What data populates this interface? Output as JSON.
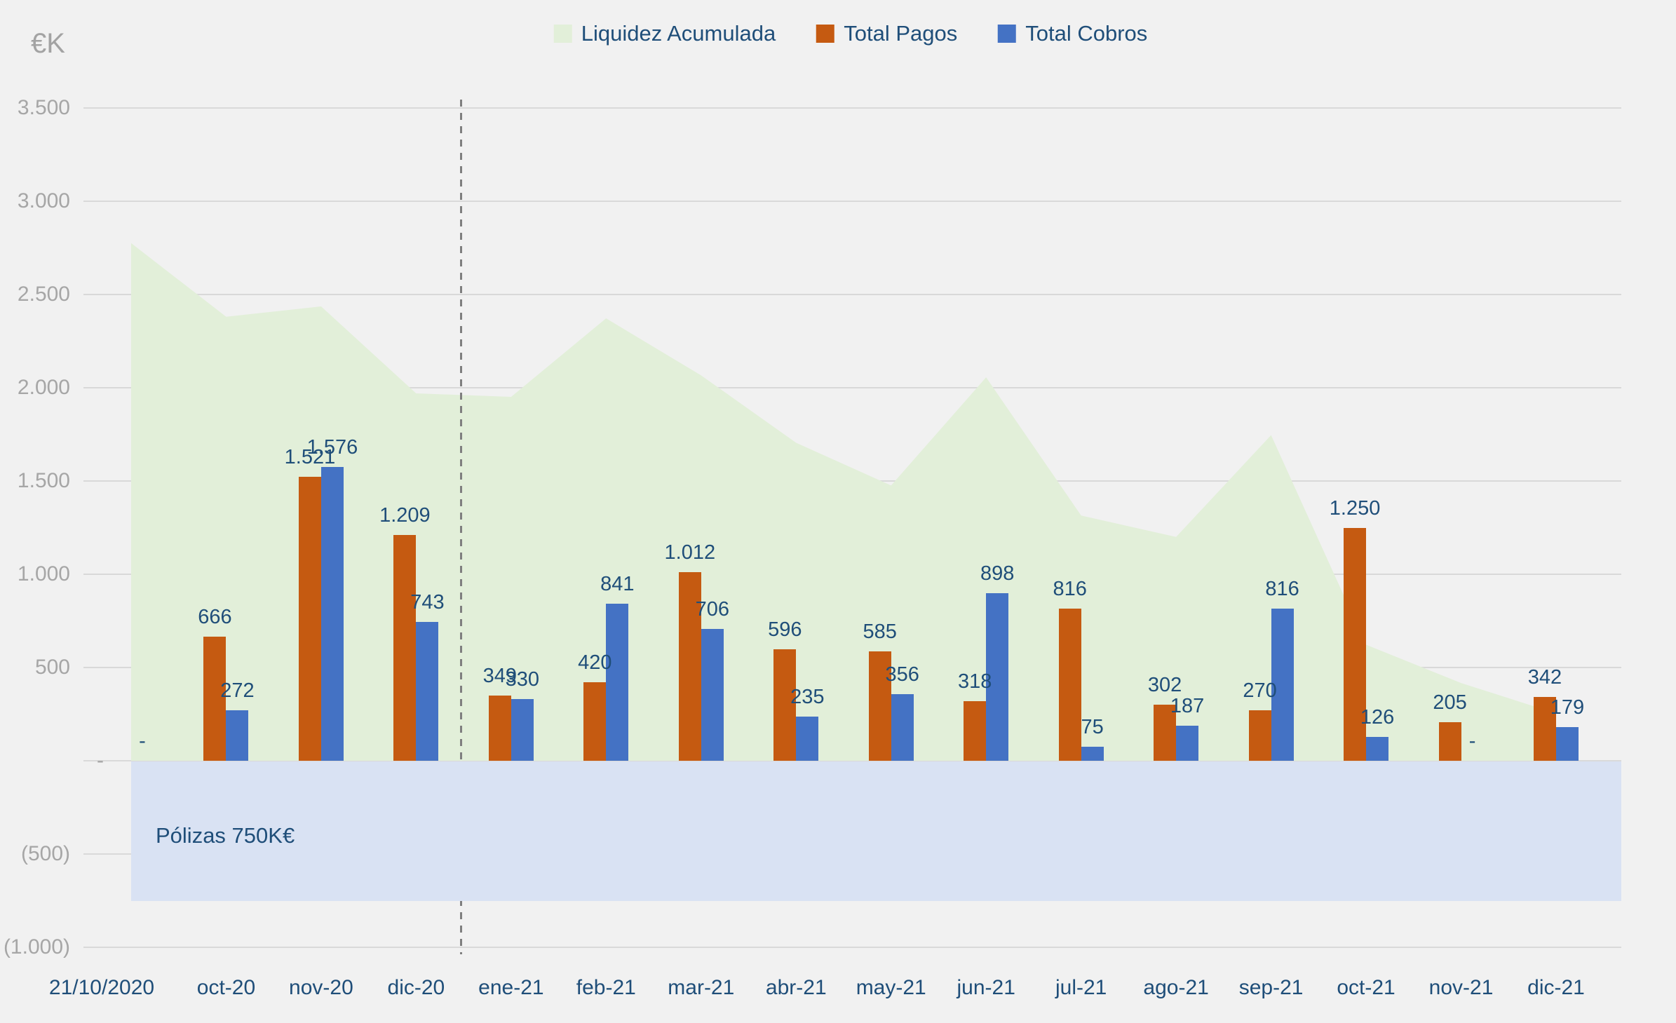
{
  "chart": {
    "unit_label": "€K",
    "legend": [
      {
        "name": "Liquidez Acumulada",
        "color": "#E2EFD9"
      },
      {
        "name": "Total Pagos",
        "color": "#C55A11"
      },
      {
        "name": "Total Cobros",
        "color": "#4472C4"
      }
    ],
    "annotation": "Pólizas 750K€",
    "colors": {
      "background": "#F1F1F1",
      "gridline": "#D9D9D9",
      "axis_text_gray": "#A6A6A6",
      "label_navy": "#1F4E79",
      "area_green": "#E2EFD9",
      "pagos_orange": "#C55A11",
      "cobros_blue": "#4472C4",
      "band_blue": "#D9E2F3",
      "divider_gray": "#7F7F7F"
    },
    "chart_data": {
      "type": "bar",
      "subtype": "combo-area-and-clustered-bars",
      "categories": [
        "21/10/2020",
        "oct-20",
        "nov-20",
        "dic-20",
        "ene-21",
        "feb-21",
        "mar-21",
        "abr-21",
        "may-21",
        "jun-21",
        "jul-21",
        "ago-21",
        "sep-21",
        "oct-21",
        "nov-21",
        "dic-21"
      ],
      "series": [
        {
          "name": "Liquidez Acumulada",
          "type": "area",
          "color": "#E2EFD9",
          "values": [
            2775,
            2381,
            2436,
            1970,
            1951,
            2372,
            2066,
            1705,
            1476,
            2056,
            1315,
            1200,
            1746,
            622,
            417,
            254
          ]
        },
        {
          "name": "Total Pagos",
          "type": "bar",
          "color": "#C55A11",
          "values": [
            null,
            666,
            1521,
            1209,
            349,
            420,
            1012,
            596,
            585,
            318,
            816,
            302,
            270,
            1250,
            205,
            342
          ],
          "labels": [
            "",
            "666",
            "1.521",
            "1.209",
            "349",
            "420",
            "1.012",
            "596",
            "585",
            "318",
            "816",
            "302",
            "270",
            "1.250",
            "205",
            "342"
          ]
        },
        {
          "name": "Total Cobros",
          "type": "bar",
          "color": "#4472C4",
          "values": [
            null,
            272,
            1576,
            743,
            330,
            841,
            706,
            235,
            356,
            898,
            75,
            187,
            816,
            126,
            0,
            179
          ],
          "labels": [
            "-",
            "272",
            "1.576",
            "743",
            "330",
            "841",
            "706",
            "235",
            "356",
            "898",
            "75",
            "187",
            "816",
            "126",
            "-",
            "179"
          ]
        }
      ],
      "y_axis": {
        "title": "€K",
        "min": -1000,
        "max": 3500,
        "step": 500,
        "tick_labels": [
          "3.500",
          "3.000",
          "2.500",
          "2.000",
          "1.500",
          "1.000",
          "500",
          "-",
          "(500)",
          "(1.000)"
        ]
      },
      "grid": true,
      "legend_position": "top",
      "band": {
        "label": "Pólizas 750K€",
        "from": 0,
        "to": -750,
        "color": "#D9E2F3"
      },
      "divider_after_category": "dic-20"
    }
  }
}
